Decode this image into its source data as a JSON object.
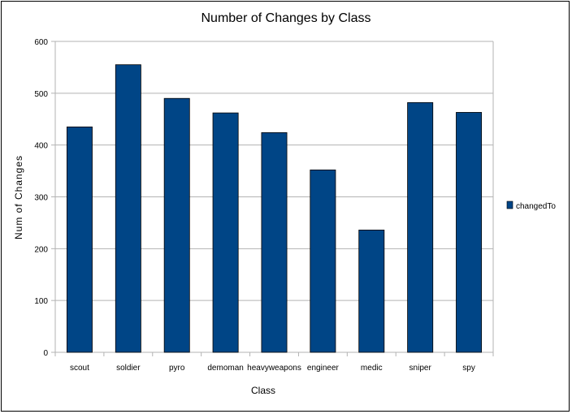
{
  "chart_data": {
    "type": "bar",
    "title": "Number of Changes by Class",
    "xlabel": "Class",
    "ylabel": "Num of Changes",
    "categories": [
      "scout",
      "soldier",
      "pyro",
      "demoman",
      "heavyweapons",
      "engineer",
      "medic",
      "sniper",
      "spy"
    ],
    "series": [
      {
        "name": "changedTo",
        "values": [
          435,
          555,
          490,
          462,
          424,
          352,
          236,
          482,
          463
        ]
      }
    ],
    "ylim": [
      0,
      600
    ],
    "yticks": [
      "0",
      "100",
      "200",
      "300",
      "400",
      "500",
      "600"
    ],
    "grid": true,
    "legend": "right",
    "bar_color": "#004586",
    "grid_color": "#b3b3b3"
  }
}
